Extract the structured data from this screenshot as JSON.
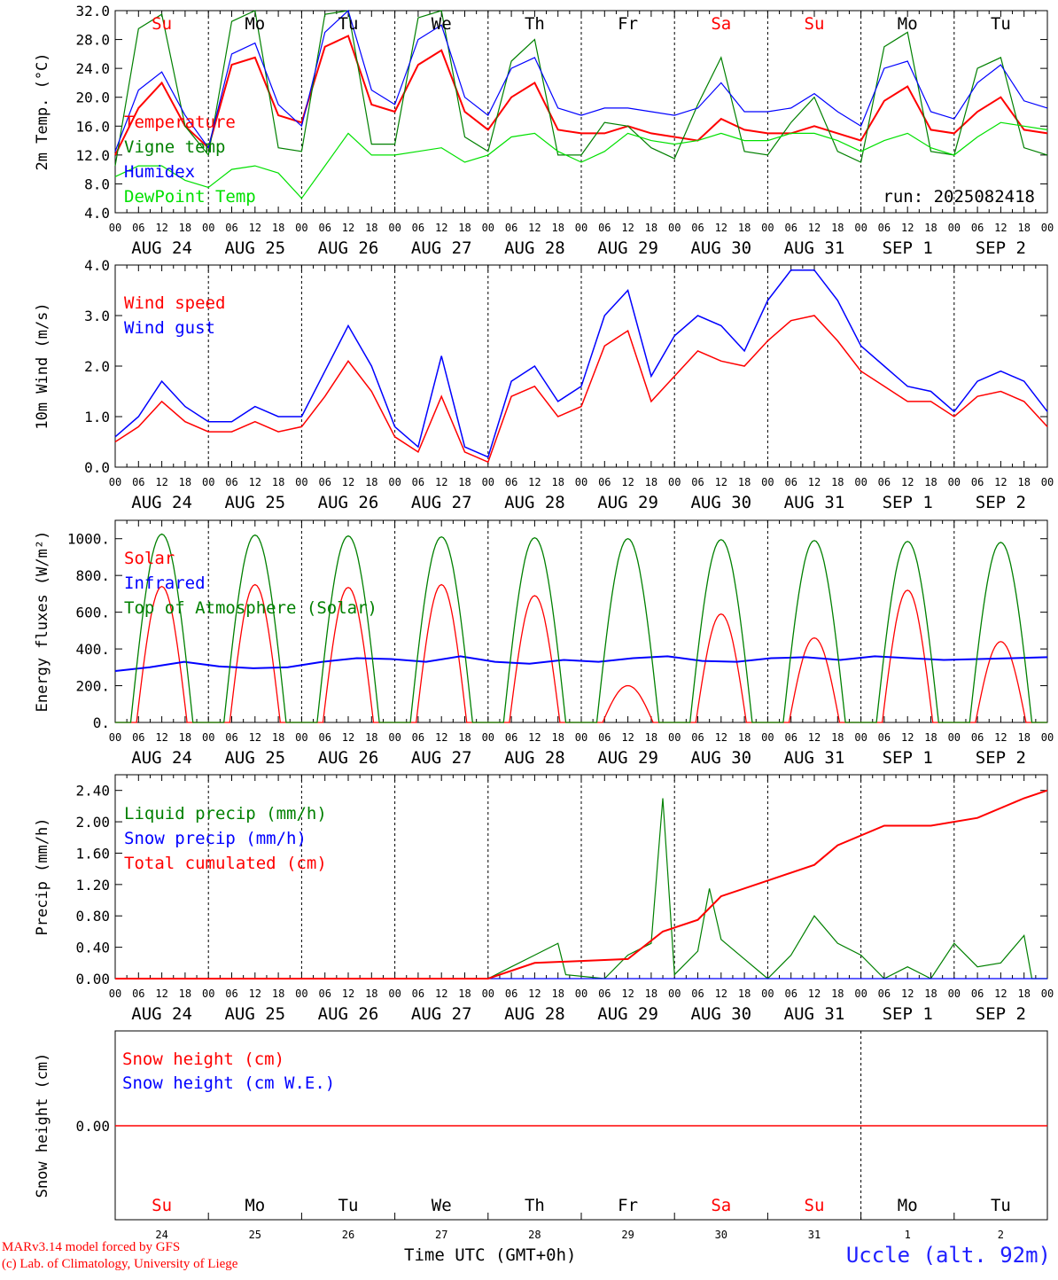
{
  "chart_data": [
    {
      "type": "line",
      "ylabel": "2m Temp. (°C)",
      "ylim": [
        4.0,
        32.0
      ],
      "yticks": [
        "4.0",
        "8.0",
        "12.0",
        "16.0",
        "20.0",
        "24.0",
        "28.0",
        "32.0"
      ],
      "run_label": "run: 2025082418",
      "x_hours": [
        0,
        6,
        12,
        18,
        24,
        30,
        36,
        42,
        48,
        54,
        60,
        66,
        72,
        78,
        84,
        90,
        96,
        102,
        108,
        114,
        120,
        126,
        132,
        138,
        144,
        150,
        156,
        162,
        168,
        174,
        180,
        186,
        192,
        198,
        204,
        210,
        216,
        222,
        228,
        234,
        240
      ],
      "series": [
        {
          "name": "Temperature",
          "color": "#ff0000",
          "values": [
            12.0,
            18.5,
            22.0,
            16.0,
            13.0,
            24.5,
            25.5,
            17.5,
            16.5,
            27.0,
            28.5,
            19.0,
            18.0,
            24.5,
            26.5,
            18.0,
            15.5,
            20.0,
            22.0,
            15.5,
            15.0,
            15.0,
            16.0,
            15.0,
            14.5,
            14.0,
            17.0,
            15.5,
            15.0,
            15.0,
            16.0,
            15.0,
            14.0,
            19.5,
            21.5,
            15.5,
            15.0,
            18.0,
            20.0,
            15.5,
            15.0
          ]
        },
        {
          "name": "Vigne temp",
          "color": "#008000",
          "values": [
            10.5,
            29.5,
            31.5,
            16.0,
            12.0,
            30.5,
            32.0,
            13.0,
            12.5,
            31.5,
            32.0,
            13.5,
            13.5,
            31.0,
            32.0,
            14.5,
            12.5,
            25.0,
            28.0,
            12.0,
            12.0,
            16.5,
            16.0,
            13.0,
            11.5,
            19.0,
            25.5,
            12.5,
            12.0,
            16.5,
            20.0,
            12.5,
            11.0,
            27.0,
            29.0,
            12.5,
            12.0,
            24.0,
            25.5,
            13.0,
            12.0
          ]
        },
        {
          "name": "Humidex",
          "color": "#0000ff",
          "values": [
            12.5,
            21.0,
            23.5,
            17.5,
            13.0,
            26.0,
            27.5,
            19.0,
            16.0,
            29.0,
            32.0,
            21.0,
            19.0,
            28.0,
            30.0,
            20.0,
            17.5,
            24.0,
            25.5,
            18.5,
            17.5,
            18.5,
            18.5,
            18.0,
            17.5,
            18.5,
            22.0,
            18.0,
            18.0,
            18.5,
            20.5,
            18.0,
            16.0,
            24.0,
            25.0,
            18.0,
            17.0,
            22.0,
            24.5,
            19.5,
            18.5
          ]
        },
        {
          "name": "DewPoint Temp",
          "color": "#00e000",
          "values": [
            9.0,
            10.5,
            10.5,
            8.5,
            7.5,
            10.0,
            10.5,
            9.5,
            6.0,
            10.5,
            15.0,
            12.0,
            12.0,
            12.5,
            13.0,
            11.0,
            12.0,
            14.5,
            15.0,
            12.5,
            11.0,
            12.5,
            15.0,
            14.0,
            13.5,
            14.0,
            15.0,
            14.0,
            14.0,
            15.0,
            15.0,
            14.0,
            12.5,
            14.0,
            15.0,
            13.0,
            12.0,
            14.5,
            16.5,
            16.0,
            15.5
          ]
        }
      ]
    },
    {
      "type": "line",
      "ylabel": "10m Wind (m/s)",
      "ylim": [
        0.0,
        4.0
      ],
      "yticks": [
        "0.0",
        "1.0",
        "2.0",
        "3.0",
        "4.0"
      ],
      "x_hours": [
        0,
        6,
        12,
        18,
        24,
        30,
        36,
        42,
        48,
        54,
        60,
        66,
        72,
        78,
        84,
        90,
        96,
        102,
        108,
        114,
        120,
        126,
        132,
        138,
        144,
        150,
        156,
        162,
        168,
        174,
        180,
        186,
        192,
        198,
        204,
        210,
        216,
        222,
        228,
        234,
        240
      ],
      "series": [
        {
          "name": "Wind speed",
          "color": "#ff0000",
          "values": [
            0.5,
            0.8,
            1.3,
            0.9,
            0.7,
            0.7,
            0.9,
            0.7,
            0.8,
            1.4,
            2.1,
            1.5,
            0.6,
            0.3,
            1.4,
            0.3,
            0.1,
            1.4,
            1.6,
            1.0,
            1.2,
            2.4,
            2.7,
            1.3,
            1.8,
            2.3,
            2.1,
            2.0,
            2.5,
            2.9,
            3.0,
            2.5,
            1.9,
            1.6,
            1.3,
            1.3,
            1.0,
            1.4,
            1.5,
            1.3,
            0.8
          ]
        },
        {
          "name": "Wind gust",
          "color": "#0000ff",
          "values": [
            0.6,
            1.0,
            1.7,
            1.2,
            0.9,
            0.9,
            1.2,
            1.0,
            1.0,
            1.9,
            2.8,
            2.0,
            0.8,
            0.4,
            2.2,
            0.4,
            0.2,
            1.7,
            2.0,
            1.3,
            1.6,
            3.0,
            3.5,
            1.8,
            2.6,
            3.0,
            2.8,
            2.3,
            3.3,
            3.9,
            3.9,
            3.3,
            2.4,
            2.0,
            1.6,
            1.5,
            1.1,
            1.7,
            1.9,
            1.7,
            1.1
          ]
        }
      ]
    },
    {
      "type": "line",
      "ylabel": "Energy fluxes (W/m²)",
      "ylim": [
        0,
        1100
      ],
      "yticks": [
        "0.",
        "200.",
        "400.",
        "600.",
        "800.",
        "1000."
      ],
      "series": [
        {
          "name": "Solar",
          "color": "#ff0000",
          "day_peaks": [
            740,
            750,
            735,
            750,
            690,
            200,
            590,
            460,
            720,
            440
          ]
        },
        {
          "name": "Infrared",
          "color": "#0000ff",
          "values": [
            280,
            300,
            330,
            305,
            295,
            300,
            330,
            350,
            345,
            330,
            360,
            330,
            320,
            340,
            330,
            350,
            360,
            335,
            330,
            350,
            355,
            340,
            360,
            350,
            340,
            345,
            350,
            355
          ]
        },
        {
          "name": "Top of Atmosphere (Solar)",
          "color": "#008000",
          "day_peaks": [
            1025,
            1020,
            1015,
            1010,
            1005,
            1000,
            995,
            990,
            985,
            980
          ]
        }
      ]
    },
    {
      "type": "line",
      "ylabel": "Precip (mm/h)",
      "ylim": [
        0.0,
        2.6
      ],
      "yticks": [
        "0.00",
        "0.40",
        "0.80",
        "1.20",
        "1.60",
        "2.00",
        "2.40"
      ],
      "series": [
        {
          "name": "Liquid precip (mm/h)",
          "color": "#008000",
          "points": [
            [
              0,
              0
            ],
            [
              96,
              0
            ],
            [
              102,
              0.15
            ],
            [
              108,
              0.3
            ],
            [
              114,
              0.45
            ],
            [
              116,
              0.05
            ],
            [
              126,
              0
            ],
            [
              132,
              0.3
            ],
            [
              138,
              0.45
            ],
            [
              141,
              2.3
            ],
            [
              144,
              0.05
            ],
            [
              150,
              0.35
            ],
            [
              153,
              1.15
            ],
            [
              156,
              0.5
            ],
            [
              162,
              0.25
            ],
            [
              168,
              0
            ],
            [
              174,
              0.3
            ],
            [
              180,
              0.8
            ],
            [
              186,
              0.45
            ],
            [
              192,
              0.3
            ],
            [
              198,
              0
            ],
            [
              204,
              0.15
            ],
            [
              210,
              0
            ],
            [
              216,
              0.45
            ],
            [
              222,
              0.15
            ],
            [
              228,
              0.2
            ],
            [
              234,
              0.55
            ],
            [
              236,
              0
            ],
            [
              240,
              0
            ]
          ]
        },
        {
          "name": "Snow precip (mm/h)",
          "color": "#0000ff",
          "points": [
            [
              0,
              0
            ],
            [
              240,
              0
            ]
          ]
        },
        {
          "name": "Total cumulated (cm)",
          "color": "#ff0000",
          "points": [
            [
              0,
              0
            ],
            [
              96,
              0
            ],
            [
              108,
              0.2
            ],
            [
              132,
              0.25
            ],
            [
              141,
              0.6
            ],
            [
              150,
              0.75
            ],
            [
              156,
              1.05
            ],
            [
              168,
              1.25
            ],
            [
              180,
              1.45
            ],
            [
              186,
              1.7
            ],
            [
              198,
              1.95
            ],
            [
              210,
              1.95
            ],
            [
              222,
              2.05
            ],
            [
              234,
              2.3
            ],
            [
              240,
              2.4
            ]
          ]
        }
      ]
    },
    {
      "type": "line",
      "ylabel": "Snow height (cm)",
      "yticks": [
        "0.00"
      ],
      "series": [
        {
          "name": "Snow height (cm)",
          "color": "#ff0000",
          "values": [
            0,
            0
          ]
        },
        {
          "name": "Snow height (cm W.E.)",
          "color": "#0000ff",
          "values": [
            0,
            0
          ]
        }
      ]
    }
  ],
  "days": [
    {
      "abbr": "Su",
      "color": "#ff0000",
      "date": "AUG 24",
      "num": "24"
    },
    {
      "abbr": "Mo",
      "color": "#000000",
      "date": "AUG 25",
      "num": "25"
    },
    {
      "abbr": "Tu",
      "color": "#000000",
      "date": "AUG 26",
      "num": "26"
    },
    {
      "abbr": "We",
      "color": "#000000",
      "date": "AUG 27",
      "num": "27"
    },
    {
      "abbr": "Th",
      "color": "#000000",
      "date": "AUG 28",
      "num": "28"
    },
    {
      "abbr": "Fr",
      "color": "#000000",
      "date": "AUG 29",
      "num": "29"
    },
    {
      "abbr": "Sa",
      "color": "#ff0000",
      "date": "AUG 30",
      "num": "30"
    },
    {
      "abbr": "Su",
      "color": "#ff0000",
      "date": "AUG 31",
      "num": "31"
    },
    {
      "abbr": "Mo",
      "color": "#000000",
      "date": "SEP  1",
      "num": "1"
    },
    {
      "abbr": "Tu",
      "color": "#000000",
      "date": "SEP  2",
      "num": "2"
    }
  ],
  "hour_labels": [
    "00",
    "06",
    "12",
    "18"
  ],
  "footer": {
    "credit_line1": "MARv3.14 model forced by GFS",
    "credit_line2": "(c) Lab. of Climatology, University of Liege",
    "xlabel": "Time UTC (GMT+0h)",
    "station": "Uccle (alt. 92m)"
  }
}
